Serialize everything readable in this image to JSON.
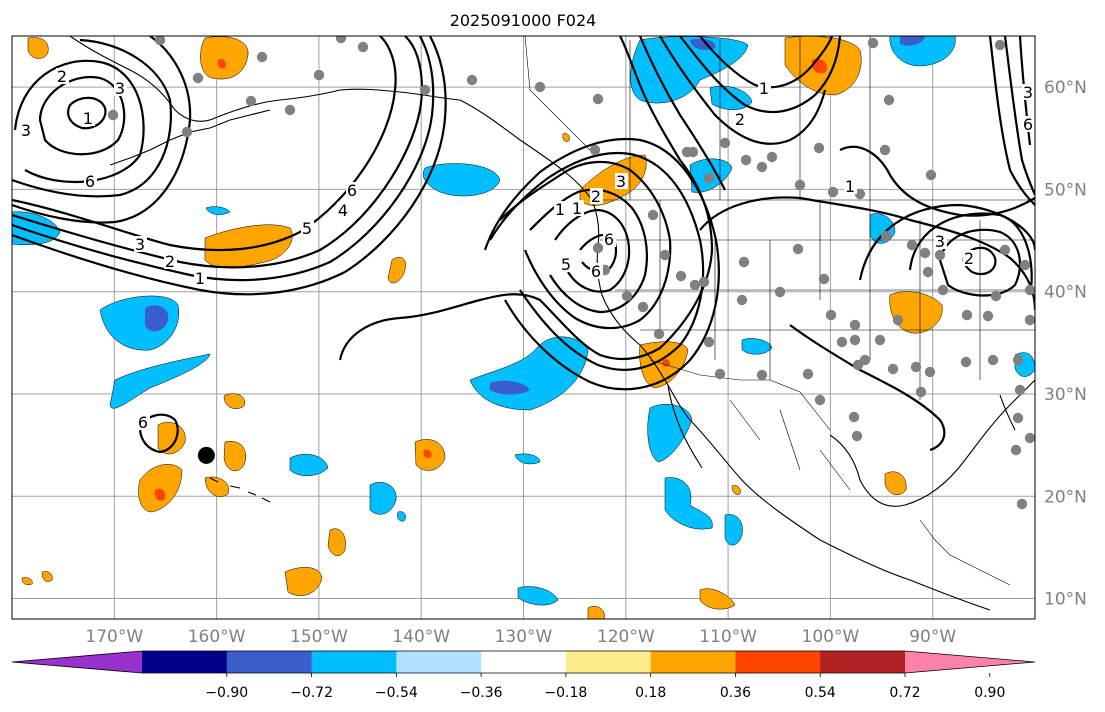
{
  "title": "2025091000 F024",
  "map": {
    "lon_labels": [
      "170°W",
      "160°W",
      "150°W",
      "140°W",
      "130°W",
      "120°W",
      "110°W",
      "100°W",
      "90°W"
    ],
    "lat_labels": [
      "60°N",
      "50°N",
      "40°N",
      "30°N",
      "20°N",
      "10°N"
    ],
    "lon_values": [
      -170,
      -160,
      -150,
      -140,
      -130,
      -120,
      -110,
      -100,
      -90
    ],
    "lat_values": [
      60,
      50,
      40,
      30,
      20,
      10
    ],
    "extent": {
      "lon_min": -180,
      "lon_max": -80,
      "lat_min": 8,
      "lat_max": 65
    },
    "storm_marker": {
      "lon": -161,
      "lat": 24,
      "label": ""
    },
    "contour_labels": [
      "2",
      "3",
      "1",
      "3",
      "6",
      "3",
      "2",
      "1",
      "6",
      "4",
      "5",
      "1",
      "1",
      "2",
      "3",
      "6",
      "5",
      "6",
      "2",
      "1",
      "3",
      "3",
      "2",
      "1",
      "6",
      "6"
    ]
  },
  "colorbar": {
    "ticks": [
      "−0.90",
      "−0.72",
      "−0.54",
      "−0.36",
      "−0.18",
      "0.18",
      "0.36",
      "0.54",
      "0.72",
      "0.90"
    ],
    "colors": [
      "#9932cc",
      "#00008b",
      "#3a5fcd",
      "#00bfff",
      "#b0e2ff",
      "#ffffff",
      "#ffec8b",
      "#ffa500",
      "#ff4500",
      "#b22222",
      "#ff83a8"
    ]
  },
  "colors": {
    "orange": "#ffa500",
    "red": "#ff4500",
    "blue": "#00bfff",
    "darkblue": "#3a5fcd",
    "station": "#808080",
    "grid": "#a0a0a0"
  }
}
